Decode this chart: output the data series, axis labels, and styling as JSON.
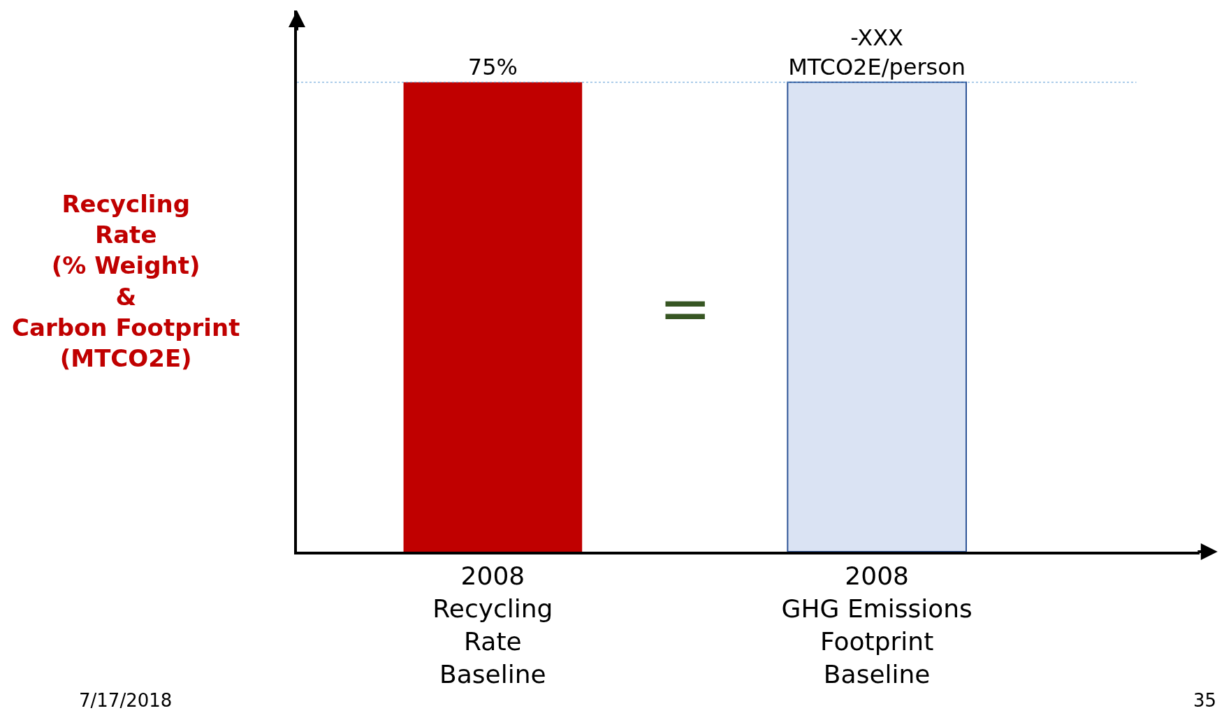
{
  "chart_data": {
    "type": "bar",
    "ylabel": "Recycling\nRate\n(% Weight)\n&\nCarbon Footprint\n(MTCO2E)",
    "categories": [
      "2008\nRecycling\nRate\nBaseline",
      "2008\nGHG Emissions\nFootprint\nBaseline"
    ],
    "values": [
      75,
      75
    ],
    "colors": [
      "#c00000",
      "#dae3f3"
    ],
    "value_labels": [
      "75%",
      "-XXX\nMTCO2E/person"
    ],
    "ref_lines": [
      {
        "axis": "y",
        "value": 75,
        "color": "#5b9bd5",
        "line_style": "dotted"
      }
    ],
    "annotations": [
      "=",
      "7/17/2018",
      "35"
    ]
  }
}
